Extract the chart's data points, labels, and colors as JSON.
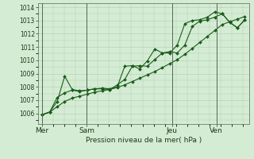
{
  "background_color": "#d4ecd4",
  "plot_bg_color": "#d4ecd4",
  "grid_color": "#b0ccb0",
  "line_color": "#1a5c1a",
  "marker_color": "#1a5c1a",
  "xlabel": "Pression niveau de la mer( hPa )",
  "ylim": [
    1005.2,
    1014.3
  ],
  "yticks": [
    1006,
    1007,
    1008,
    1009,
    1010,
    1011,
    1012,
    1013,
    1014
  ],
  "day_labels": [
    "Mer",
    "Sam",
    "Jeu",
    "Ven"
  ],
  "day_positions": [
    0.0,
    0.22,
    0.64,
    0.86
  ],
  "vline_color": "#556655",
  "series": [
    [
      1005.9,
      1006.1,
      1006.9,
      1008.8,
      1007.8,
      1007.7,
      1007.75,
      1007.85,
      1007.9,
      1007.85,
      1008.0,
      1009.55,
      1009.6,
      1009.35,
      1009.95,
      1010.85,
      1010.55,
      1010.55,
      1011.15,
      1012.75,
      1013.0,
      1013.05,
      1013.25,
      1013.65,
      1013.5,
      1012.85,
      1012.45,
      1013.05
    ],
    [
      1005.9,
      1006.1,
      1007.2,
      1007.55,
      1007.75,
      1007.65,
      1007.75,
      1007.85,
      1007.85,
      1007.8,
      1008.15,
      1008.55,
      1009.55,
      1009.6,
      1009.55,
      1010.05,
      1010.55,
      1010.65,
      1010.55,
      1011.15,
      1012.55,
      1012.95,
      1013.05,
      1013.25,
      1013.5,
      1012.85,
      1012.45,
      1013.05
    ],
    [
      1005.9,
      1006.1,
      1006.5,
      1006.9,
      1007.15,
      1007.3,
      1007.45,
      1007.6,
      1007.7,
      1007.8,
      1007.95,
      1008.15,
      1008.4,
      1008.65,
      1008.9,
      1009.15,
      1009.45,
      1009.75,
      1010.05,
      1010.45,
      1010.9,
      1011.35,
      1011.8,
      1012.25,
      1012.7,
      1012.9,
      1013.1,
      1013.3
    ]
  ]
}
